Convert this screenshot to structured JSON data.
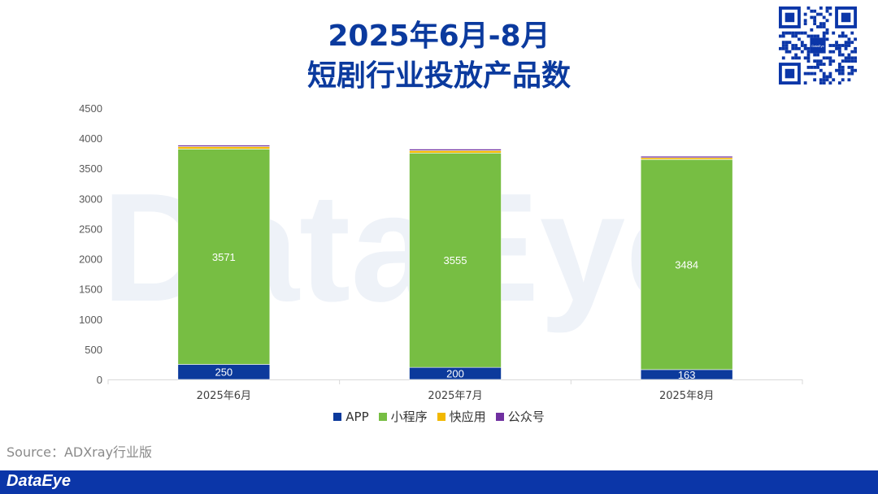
{
  "title": {
    "line1": "2025年6月-8月",
    "line2": "短剧行业投放产品数"
  },
  "source_text": "Source：ADXray行业版",
  "brand": {
    "name": "DataEye",
    "watermark": "DataEye"
  },
  "qr": {
    "center_label": "DataEye"
  },
  "colors": {
    "title": "#0b3a9e",
    "footer": "#0b36a8",
    "APP": "#0c3a9c",
    "小程序": "#77be43",
    "快应用": "#f2b800",
    "公众号": "#7030a0"
  },
  "chart_data": {
    "type": "bar",
    "stacked": true,
    "categories": [
      "2025年6月",
      "2025年7月",
      "2025年8月"
    ],
    "series": [
      {
        "name": "APP",
        "values": [
          250,
          200,
          163
        ],
        "labels": [
          "250",
          "200",
          "163"
        ]
      },
      {
        "name": "小程序",
        "values": [
          3571,
          3555,
          3484
        ],
        "labels": [
          "3571",
          "3555",
          "3484"
        ]
      },
      {
        "name": "快应用",
        "values": [
          40,
          40,
          30
        ],
        "labels": []
      },
      {
        "name": "公众号",
        "values": [
          25,
          25,
          25
        ],
        "labels": []
      }
    ],
    "y_ticks": [
      "0",
      "500",
      "1000",
      "1500",
      "2000",
      "2500",
      "3000",
      "3500",
      "4000",
      "4500"
    ],
    "ylim": [
      0,
      4500
    ],
    "grid": false,
    "legend_position": "bottom"
  }
}
